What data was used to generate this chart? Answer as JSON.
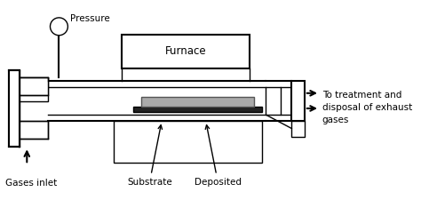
{
  "bg_color": "#ffffff",
  "line_color": "#000000",
  "labels": {
    "pressure": "Pressure",
    "furnace": "Furnace",
    "gases_inlet": "Gases inlet",
    "substrate": "Substrate",
    "deposited": "Deposited",
    "exhaust": "To treatment and\ndisposal of exhaust\ngases"
  },
  "font_size": 7.5
}
